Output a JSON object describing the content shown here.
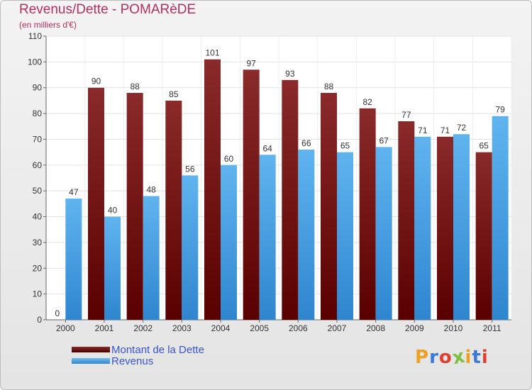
{
  "chart_data": {
    "type": "bar",
    "title": "Revenus/Dette - POMARèDE",
    "subtitle": "(en milliers d'€)",
    "categories": [
      "2000",
      "2001",
      "2002",
      "2003",
      "2004",
      "2005",
      "2006",
      "2007",
      "2008",
      "2009",
      "2010",
      "2011"
    ],
    "series": [
      {
        "name": "Montant de la Dette",
        "color": "#7a1414",
        "values": [
          0,
          90,
          88,
          85,
          101,
          97,
          93,
          88,
          82,
          77,
          71,
          65
        ]
      },
      {
        "name": "Revenus",
        "color": "#4aa3e6",
        "values": [
          47,
          40,
          48,
          56,
          60,
          64,
          66,
          65,
          67,
          71,
          72,
          79
        ]
      }
    ],
    "ylim": [
      0,
      110
    ],
    "yticks": [
      0,
      10,
      20,
      30,
      40,
      50,
      60,
      70,
      80,
      90,
      100,
      110
    ],
    "grid": true,
    "legend_position": "bottom-left"
  },
  "logo": {
    "text": "Proxiti",
    "colors": [
      "#f0a020",
      "#3a7bd5",
      "#e04030",
      "#7cc040",
      "#f0a020",
      "#3a7bd5",
      "#e04030"
    ]
  }
}
